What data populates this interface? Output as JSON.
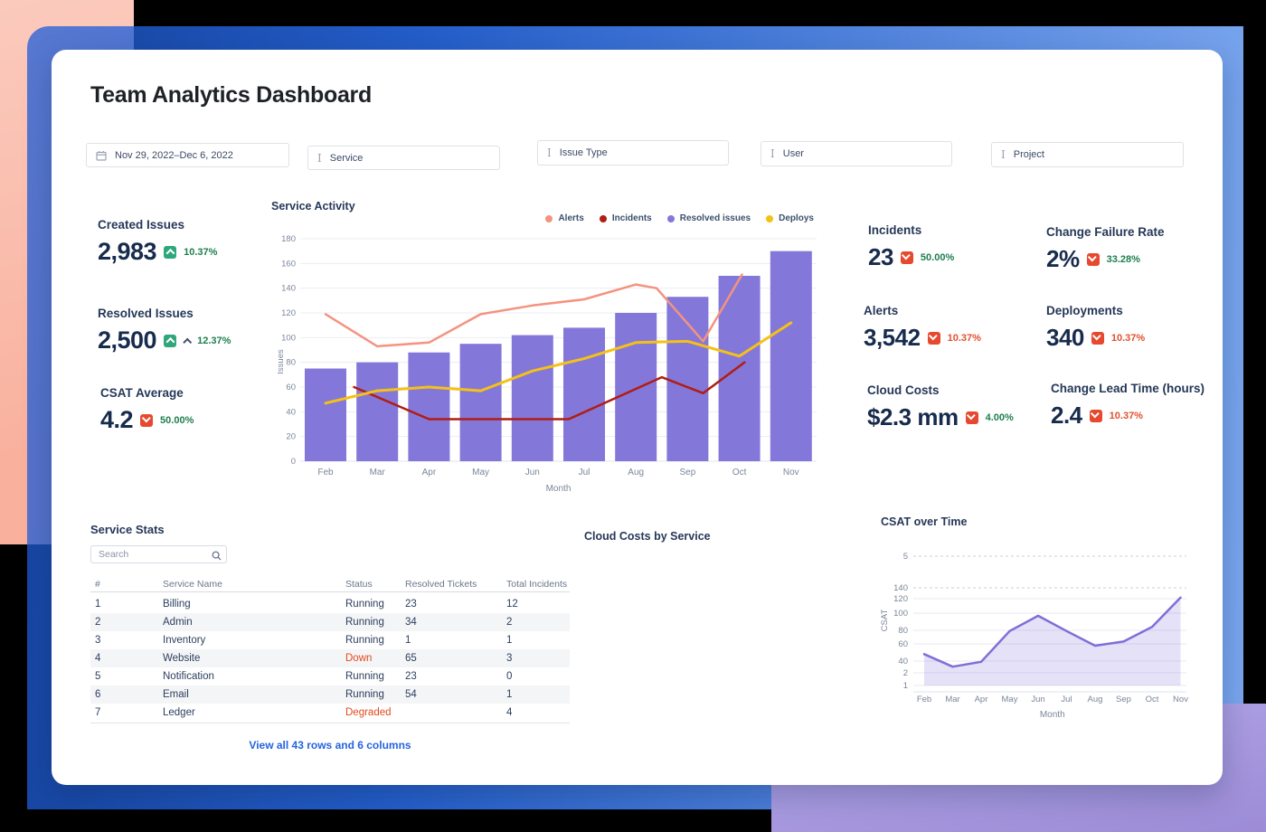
{
  "page": {
    "title": "Team Analytics Dashboard"
  },
  "theme": {
    "card_bg": "#ffffff",
    "navy": "#172b4d",
    "green_badge": "#2ea77c",
    "red_badge": "#e6492f",
    "green_text": "#1e7e4f",
    "red_text": "#e2502d",
    "link_blue": "#2463e0",
    "decor_pink": "#f9b19e",
    "decor_blue": "#2868df",
    "decor_purple": "#9d8bd6"
  },
  "filters": {
    "date_range": "Nov 29, 2022–Dec 6, 2022",
    "dropdowns": [
      {
        "label": "Service"
      },
      {
        "label": "Issue Type"
      },
      {
        "label": "User"
      },
      {
        "label": "Project"
      }
    ]
  },
  "kpis": {
    "left": [
      {
        "label": "Created Issues",
        "value": "2,983",
        "delta": "10.37%"
      },
      {
        "label": "Resolved Issues",
        "value": "2,500",
        "delta": "12.37%"
      },
      {
        "label": "CSAT Average",
        "value": "4.2",
        "delta": "50.00%"
      }
    ],
    "right": [
      {
        "label": "Incidents",
        "value": "23",
        "delta": "50.00%"
      },
      {
        "label": "Change Failure Rate",
        "value": "2%",
        "delta": "33.28%"
      },
      {
        "label": "Alerts",
        "value": "3,542",
        "delta": "10.37%"
      },
      {
        "label": "Deployments",
        "value": "340",
        "delta": "10.37%"
      },
      {
        "label": "Cloud Costs",
        "value": "$2.3 mm",
        "delta": "4.00%"
      },
      {
        "label": "Change Lead Time (hours)",
        "value": "2.4",
        "delta": "10.37%"
      }
    ]
  },
  "chart_data": [
    {
      "id": "service-activity",
      "type": "bar",
      "title": "Service Activity",
      "xlabel": "Month",
      "ylabel": "Issues",
      "categories": [
        "Feb",
        "Mar",
        "Apr",
        "May",
        "Jun",
        "Jul",
        "Aug",
        "Sep",
        "Oct",
        "Nov"
      ],
      "ylim": [
        0,
        180
      ],
      "ytick_step": 20,
      "grid": true,
      "legend_position": "top-right",
      "bar_series": {
        "name": "Resolved issues",
        "color": "#8477da",
        "values": [
          75,
          80,
          88,
          95,
          102,
          108,
          120,
          133,
          150,
          170
        ]
      },
      "line_series": [
        {
          "name": "Alerts",
          "color": "#f4937f",
          "width": 2.5,
          "points": [
            [
              0,
              119
            ],
            [
              1,
              93
            ],
            [
              2,
              96
            ],
            [
              3,
              119
            ],
            [
              4,
              126
            ],
            [
              5,
              131
            ],
            [
              6,
              143
            ],
            [
              6.4,
              140
            ],
            [
              7.3,
              97
            ],
            [
              8.05,
              151
            ]
          ]
        },
        {
          "name": "Incidents",
          "color": "#b01d12",
          "width": 2.5,
          "points": [
            [
              0.55,
              60
            ],
            [
              2,
              34
            ],
            [
              4.7,
              34
            ],
            [
              6.5,
              68
            ],
            [
              7.3,
              55
            ],
            [
              8.1,
              80
            ]
          ]
        },
        {
          "name": "Deploys",
          "color": "#f5c116",
          "width": 3,
          "points": [
            [
              0,
              47
            ],
            [
              1,
              57
            ],
            [
              2,
              60
            ],
            [
              3,
              57
            ],
            [
              4,
              73
            ],
            [
              5,
              83
            ],
            [
              6,
              96
            ],
            [
              7,
              97
            ],
            [
              8,
              85
            ],
            [
              9,
              112
            ]
          ]
        }
      ],
      "legend": [
        {
          "label": "Alerts",
          "color": "#f4937f"
        },
        {
          "label": "Incidents",
          "color": "#b01d12"
        },
        {
          "label": "Resolved issues",
          "color": "#8477da"
        },
        {
          "label": "Deploys",
          "color": "#f5c116"
        }
      ]
    },
    {
      "id": "csat-over-time",
      "type": "area",
      "title": "CSAT over Time",
      "xlabel": "Month",
      "ylabel": "CSAT",
      "categories": [
        "Feb",
        "Mar",
        "Apr",
        "May",
        "Jun",
        "Jul",
        "Aug",
        "Sep",
        "Oct",
        "Nov"
      ],
      "values": [
        45,
        27,
        34,
        78,
        100,
        78,
        57,
        63,
        84,
        126
      ],
      "ytick_labels": [
        "1",
        "2",
        "40",
        "60",
        "80",
        "100",
        "120",
        "140",
        "5"
      ],
      "ytick_y": [
        218,
        204,
        191,
        172,
        157,
        138,
        122,
        110,
        75
      ],
      "ytick_dashed": [
        false,
        false,
        false,
        false,
        false,
        false,
        false,
        true,
        true
      ],
      "grid": true,
      "line_color": "#7d6fd8",
      "fill_color": "rgba(135,119,217,0.22)"
    }
  ],
  "cloud_costs_panel": {
    "title": "Cloud Costs by Service"
  },
  "service_stats": {
    "title": "Service Stats",
    "search_placeholder": "Search",
    "columns": [
      "#",
      "Service Name",
      "Status",
      "Resolved Tickets",
      "Total Incidents"
    ],
    "rows": [
      {
        "num": "1",
        "name": "Billing",
        "status": "Running",
        "resolved": "23",
        "incidents": "12",
        "alert": false
      },
      {
        "num": "2",
        "name": "Admin",
        "status": "Running",
        "resolved": "34",
        "incidents": "2",
        "alert": false
      },
      {
        "num": "3",
        "name": "Inventory",
        "status": "Running",
        "resolved": "1",
        "incidents": "1",
        "alert": false
      },
      {
        "num": "4",
        "name": "Website",
        "status": "Down",
        "resolved": "65",
        "incidents": "3",
        "alert": true
      },
      {
        "num": "5",
        "name": "Notification",
        "status": "Running",
        "resolved": "23",
        "incidents": "0",
        "alert": false
      },
      {
        "num": "6",
        "name": "Email",
        "status": "Running",
        "resolved": "54",
        "incidents": "1",
        "alert": false
      },
      {
        "num": "7",
        "name": "Ledger",
        "status": "Degraded",
        "resolved": "",
        "incidents": "4",
        "alert": true
      }
    ],
    "footer_link": "View all 43 rows and 6 columns"
  },
  "csat_panel": {
    "title": "CSAT over Time"
  }
}
